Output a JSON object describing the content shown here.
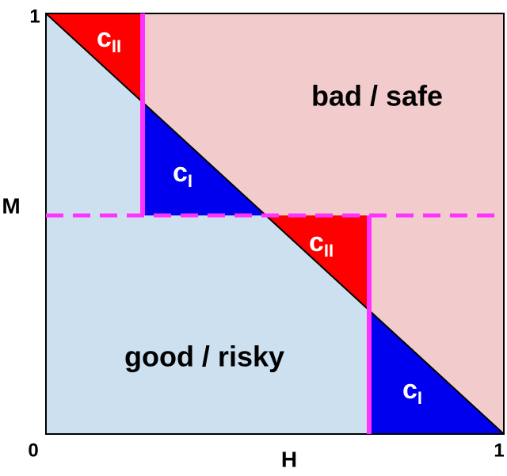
{
  "axes": {
    "y_max": "1",
    "origin": "0",
    "x_max": "1",
    "x_label": "H",
    "y_label": "M"
  },
  "regions": {
    "upper": "bad / safe",
    "lower": "good / risky"
  },
  "triangles": [
    {
      "letter": "c",
      "subscript": "II"
    },
    {
      "letter": "c",
      "subscript": "I"
    },
    {
      "letter": "c",
      "subscript": "II"
    },
    {
      "letter": "c",
      "subscript": "I"
    }
  ]
}
